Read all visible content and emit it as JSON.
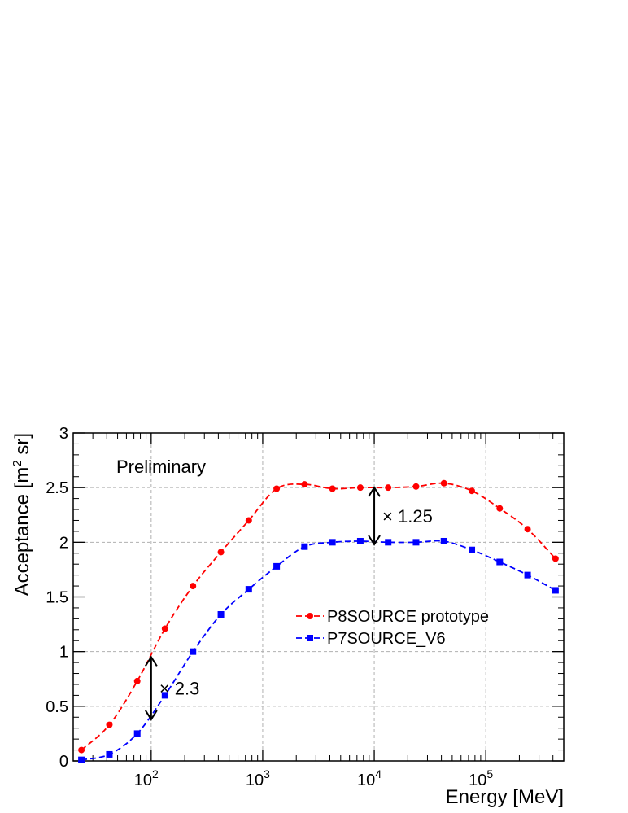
{
  "chart_data": {
    "type": "line",
    "xscale": "log",
    "xlim": [
      20,
      500000
    ],
    "ylim": [
      0,
      3
    ],
    "xlabel": "Energy [MeV]",
    "ylabel_main": "Acceptance [m",
    "ylabel_sup": "2",
    "ylabel_tail": " sr]",
    "grid": true,
    "legend_position": "center-right",
    "y_ticks": [
      "0",
      "0.5",
      "1",
      "1.5",
      "2",
      "2.5",
      "3"
    ],
    "x_ticks": [
      {
        "value": 100,
        "base": "10",
        "exp": "2"
      },
      {
        "value": 1000,
        "base": "10",
        "exp": "3"
      },
      {
        "value": 10000,
        "base": "10",
        "exp": "4"
      },
      {
        "value": 100000,
        "base": "10",
        "exp": "5"
      }
    ],
    "series": [
      {
        "name": "P8SOURCE prototype",
        "color": "#ff0000",
        "marker": "circle",
        "x": [
          23.7,
          42.2,
          75,
          133,
          237,
          422,
          750,
          1334,
          2371,
          4217,
          7499,
          13335,
          23714,
          42170,
          74989,
          133352,
          237137,
          421697
        ],
        "y": [
          0.1,
          0.33,
          0.73,
          1.21,
          1.6,
          1.91,
          2.2,
          2.49,
          2.53,
          2.49,
          2.5,
          2.5,
          2.51,
          2.54,
          2.47,
          2.31,
          2.12,
          1.85
        ]
      },
      {
        "name": "P7SOURCE_V6",
        "color": "#0000ff",
        "marker": "square",
        "x": [
          23.7,
          42.2,
          75,
          133,
          237,
          422,
          750,
          1334,
          2371,
          4217,
          7499,
          13335,
          23714,
          42170,
          74989,
          133352,
          237137,
          421697
        ],
        "y": [
          0.01,
          0.06,
          0.25,
          0.6,
          1.0,
          1.34,
          1.57,
          1.78,
          1.96,
          2.0,
          2.01,
          2.0,
          2.0,
          2.01,
          1.93,
          1.82,
          1.7,
          1.56
        ]
      }
    ],
    "annotations": [
      {
        "text": "Preliminary"
      },
      {
        "text": "× 1.25",
        "x": 10000,
        "y_from": 1.98,
        "y_to": 2.5
      },
      {
        "text": "× 2.3",
        "x": 100,
        "y_from": 0.38,
        "y_to": 0.95
      }
    ]
  }
}
